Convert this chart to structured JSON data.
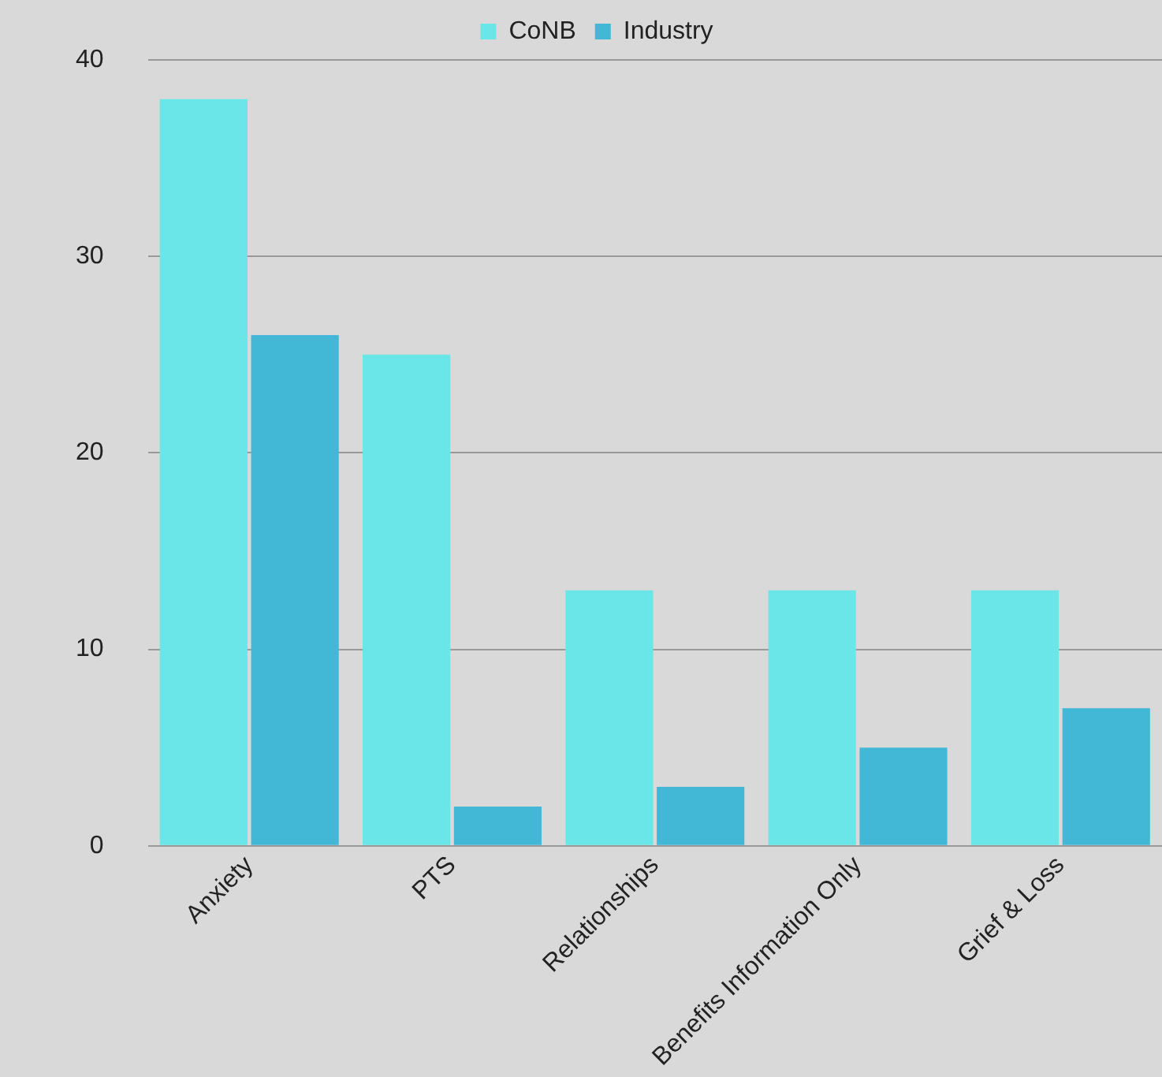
{
  "chart_data": {
    "type": "bar",
    "categories": [
      "Anxiety",
      "PTS",
      "Relationships",
      "Benefits Information Only",
      "Grief & Loss"
    ],
    "series": [
      {
        "name": "CoNB",
        "color": "#6ae6e8",
        "values": [
          38,
          25,
          13,
          13,
          13
        ]
      },
      {
        "name": "Industry",
        "color": "#42b7d6",
        "values": [
          26,
          2,
          3,
          5,
          7
        ]
      }
    ],
    "ylim": [
      0,
      40
    ],
    "yticks": [
      0,
      10,
      20,
      30,
      40
    ],
    "grid": "y",
    "legend": "top"
  }
}
